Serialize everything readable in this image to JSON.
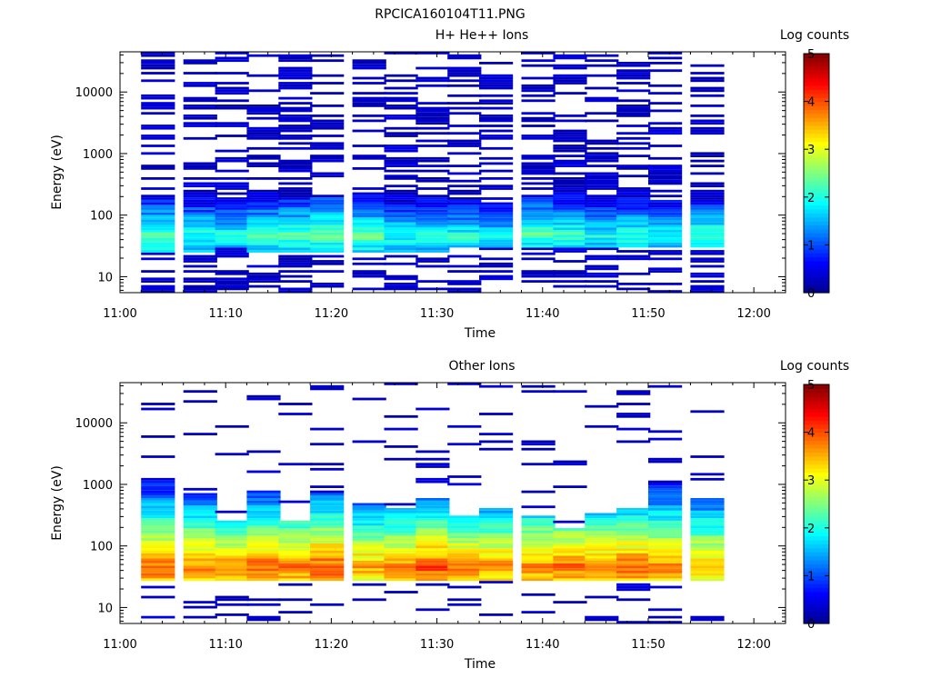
{
  "figure_title": "RPCICA160104T11.PNG",
  "colormap": [
    "#00008f",
    "#0000ff",
    "#0080ff",
    "#00ffff",
    "#80ff80",
    "#ffff00",
    "#ff8000",
    "#ff0000",
    "#800000"
  ],
  "colorbar": {
    "label": "Log counts",
    "range": [
      0,
      5
    ],
    "ticks": [
      "0",
      "1",
      "2",
      "3",
      "4",
      "5"
    ]
  },
  "chart_data": [
    {
      "type": "heatmap",
      "title": "H+ He++ Ions",
      "xlabel": "Time",
      "ylabel": "Energy (eV)",
      "y_scale": "log",
      "ylim": [
        5.5,
        45000
      ],
      "xlim": [
        "11:00",
        "12:03"
      ],
      "x_ticks": [
        "11:00",
        "11:10",
        "11:20",
        "11:30",
        "11:40",
        "11:50",
        "12:00"
      ],
      "y_ticks": [
        "10",
        "100",
        "1000",
        "10000"
      ],
      "time_bins_start": [
        "11:02",
        "11:06",
        "11:09",
        "11:12",
        "11:15",
        "11:18",
        "11:22",
        "11:25",
        "11:28",
        "11:31",
        "11:34",
        "11:38",
        "11:41",
        "11:44",
        "11:47",
        "11:50",
        "11:54"
      ],
      "bin_width_min": 3.2,
      "spectra": [
        {
          "band": [
            25,
            200
          ],
          "peak_energy": 45,
          "peak_log_counts": 2.3
        },
        {
          "band": [
            25,
            250
          ],
          "peak_energy": 45,
          "peak_log_counts": 2.1
        },
        {
          "band": [
            30,
            200
          ],
          "peak_energy": 45,
          "peak_log_counts": 2.0
        },
        {
          "band": [
            25,
            1500
          ],
          "peak_energy": 45,
          "peak_log_counts": 2.2
        },
        {
          "band": [
            25,
            300
          ],
          "peak_energy": 45,
          "peak_log_counts": 2.3
        },
        {
          "band": [
            25,
            200
          ],
          "peak_energy": 50,
          "peak_log_counts": 2.4
        },
        {
          "band": [
            25,
            350
          ],
          "peak_energy": 45,
          "peak_log_counts": 2.3
        },
        {
          "band": [
            25,
            250
          ],
          "peak_energy": 45,
          "peak_log_counts": 2.0
        },
        {
          "band": [
            25,
            200
          ],
          "peak_energy": 45,
          "peak_log_counts": 2.1
        },
        {
          "band": [
            30,
            300
          ],
          "peak_energy": 45,
          "peak_log_counts": 2.0
        },
        {
          "band": [
            30,
            200
          ],
          "peak_energy": 45,
          "peak_log_counts": 1.9
        },
        {
          "band": [
            30,
            200
          ],
          "peak_energy": 50,
          "peak_log_counts": 2.3
        },
        {
          "band": [
            30,
            600
          ],
          "peak_energy": 45,
          "peak_log_counts": 2.2
        },
        {
          "band": [
            30,
            200
          ],
          "peak_energy": 45,
          "peak_log_counts": 2.0
        },
        {
          "band": [
            30,
            600
          ],
          "peak_energy": 45,
          "peak_log_counts": 2.1
        },
        {
          "band": [
            30,
            200
          ],
          "peak_energy": 45,
          "peak_log_counts": 2.0
        },
        {
          "band": [
            30,
            1000
          ],
          "peak_energy": 45,
          "peak_log_counts": 2.2
        }
      ]
    },
    {
      "type": "heatmap",
      "title": "Other Ions",
      "xlabel": "Time",
      "ylabel": "Energy (eV)",
      "y_scale": "log",
      "ylim": [
        5.5,
        45000
      ],
      "xlim": [
        "11:00",
        "12:03"
      ],
      "x_ticks": [
        "11:00",
        "11:10",
        "11:20",
        "11:30",
        "11:40",
        "11:50",
        "12:00"
      ],
      "y_ticks": [
        "10",
        "100",
        "1000",
        "10000"
      ],
      "time_bins_start": [
        "11:02",
        "11:06",
        "11:09",
        "11:12",
        "11:15",
        "11:18",
        "11:22",
        "11:25",
        "11:28",
        "11:31",
        "11:34",
        "11:38",
        "11:41",
        "11:44",
        "11:47",
        "11:50",
        "11:54"
      ],
      "bin_width_min": 3.2,
      "spectra": [
        {
          "band": [
            28,
            1500
          ],
          "peak_energy": 45,
          "peak_log_counts": 3.9
        },
        {
          "band": [
            28,
            700
          ],
          "peak_energy": 45,
          "peak_log_counts": 3.8
        },
        {
          "band": [
            28,
            250
          ],
          "peak_energy": 45,
          "peak_log_counts": 3.7
        },
        {
          "band": [
            28,
            800
          ],
          "peak_energy": 45,
          "peak_log_counts": 3.9
        },
        {
          "band": [
            28,
            250
          ],
          "peak_energy": 45,
          "peak_log_counts": 3.8
        },
        {
          "band": [
            28,
            700
          ],
          "peak_energy": 45,
          "peak_log_counts": 4.0
        },
        {
          "band": [
            28,
            500
          ],
          "peak_energy": 45,
          "peak_log_counts": 3.6
        },
        {
          "band": [
            28,
            400
          ],
          "peak_energy": 45,
          "peak_log_counts": 3.7
        },
        {
          "band": [
            28,
            600
          ],
          "peak_energy": 45,
          "peak_log_counts": 4.0
        },
        {
          "band": [
            28,
            300
          ],
          "peak_energy": 45,
          "peak_log_counts": 3.8
        },
        {
          "band": [
            28,
            400
          ],
          "peak_energy": 45,
          "peak_log_counts": 3.7
        },
        {
          "band": [
            28,
            300
          ],
          "peak_energy": 45,
          "peak_log_counts": 3.8
        },
        {
          "band": [
            28,
            200
          ],
          "peak_energy": 45,
          "peak_log_counts": 3.9
        },
        {
          "band": [
            28,
            350
          ],
          "peak_energy": 45,
          "peak_log_counts": 3.8
        },
        {
          "band": [
            28,
            400
          ],
          "peak_energy": 45,
          "peak_log_counts": 3.9
        },
        {
          "band": [
            28,
            1200
          ],
          "peak_energy": 45,
          "peak_log_counts": 3.8
        },
        {
          "band": [
            28,
            600
          ],
          "peak_energy": 45,
          "peak_log_counts": 3.6
        }
      ]
    }
  ]
}
